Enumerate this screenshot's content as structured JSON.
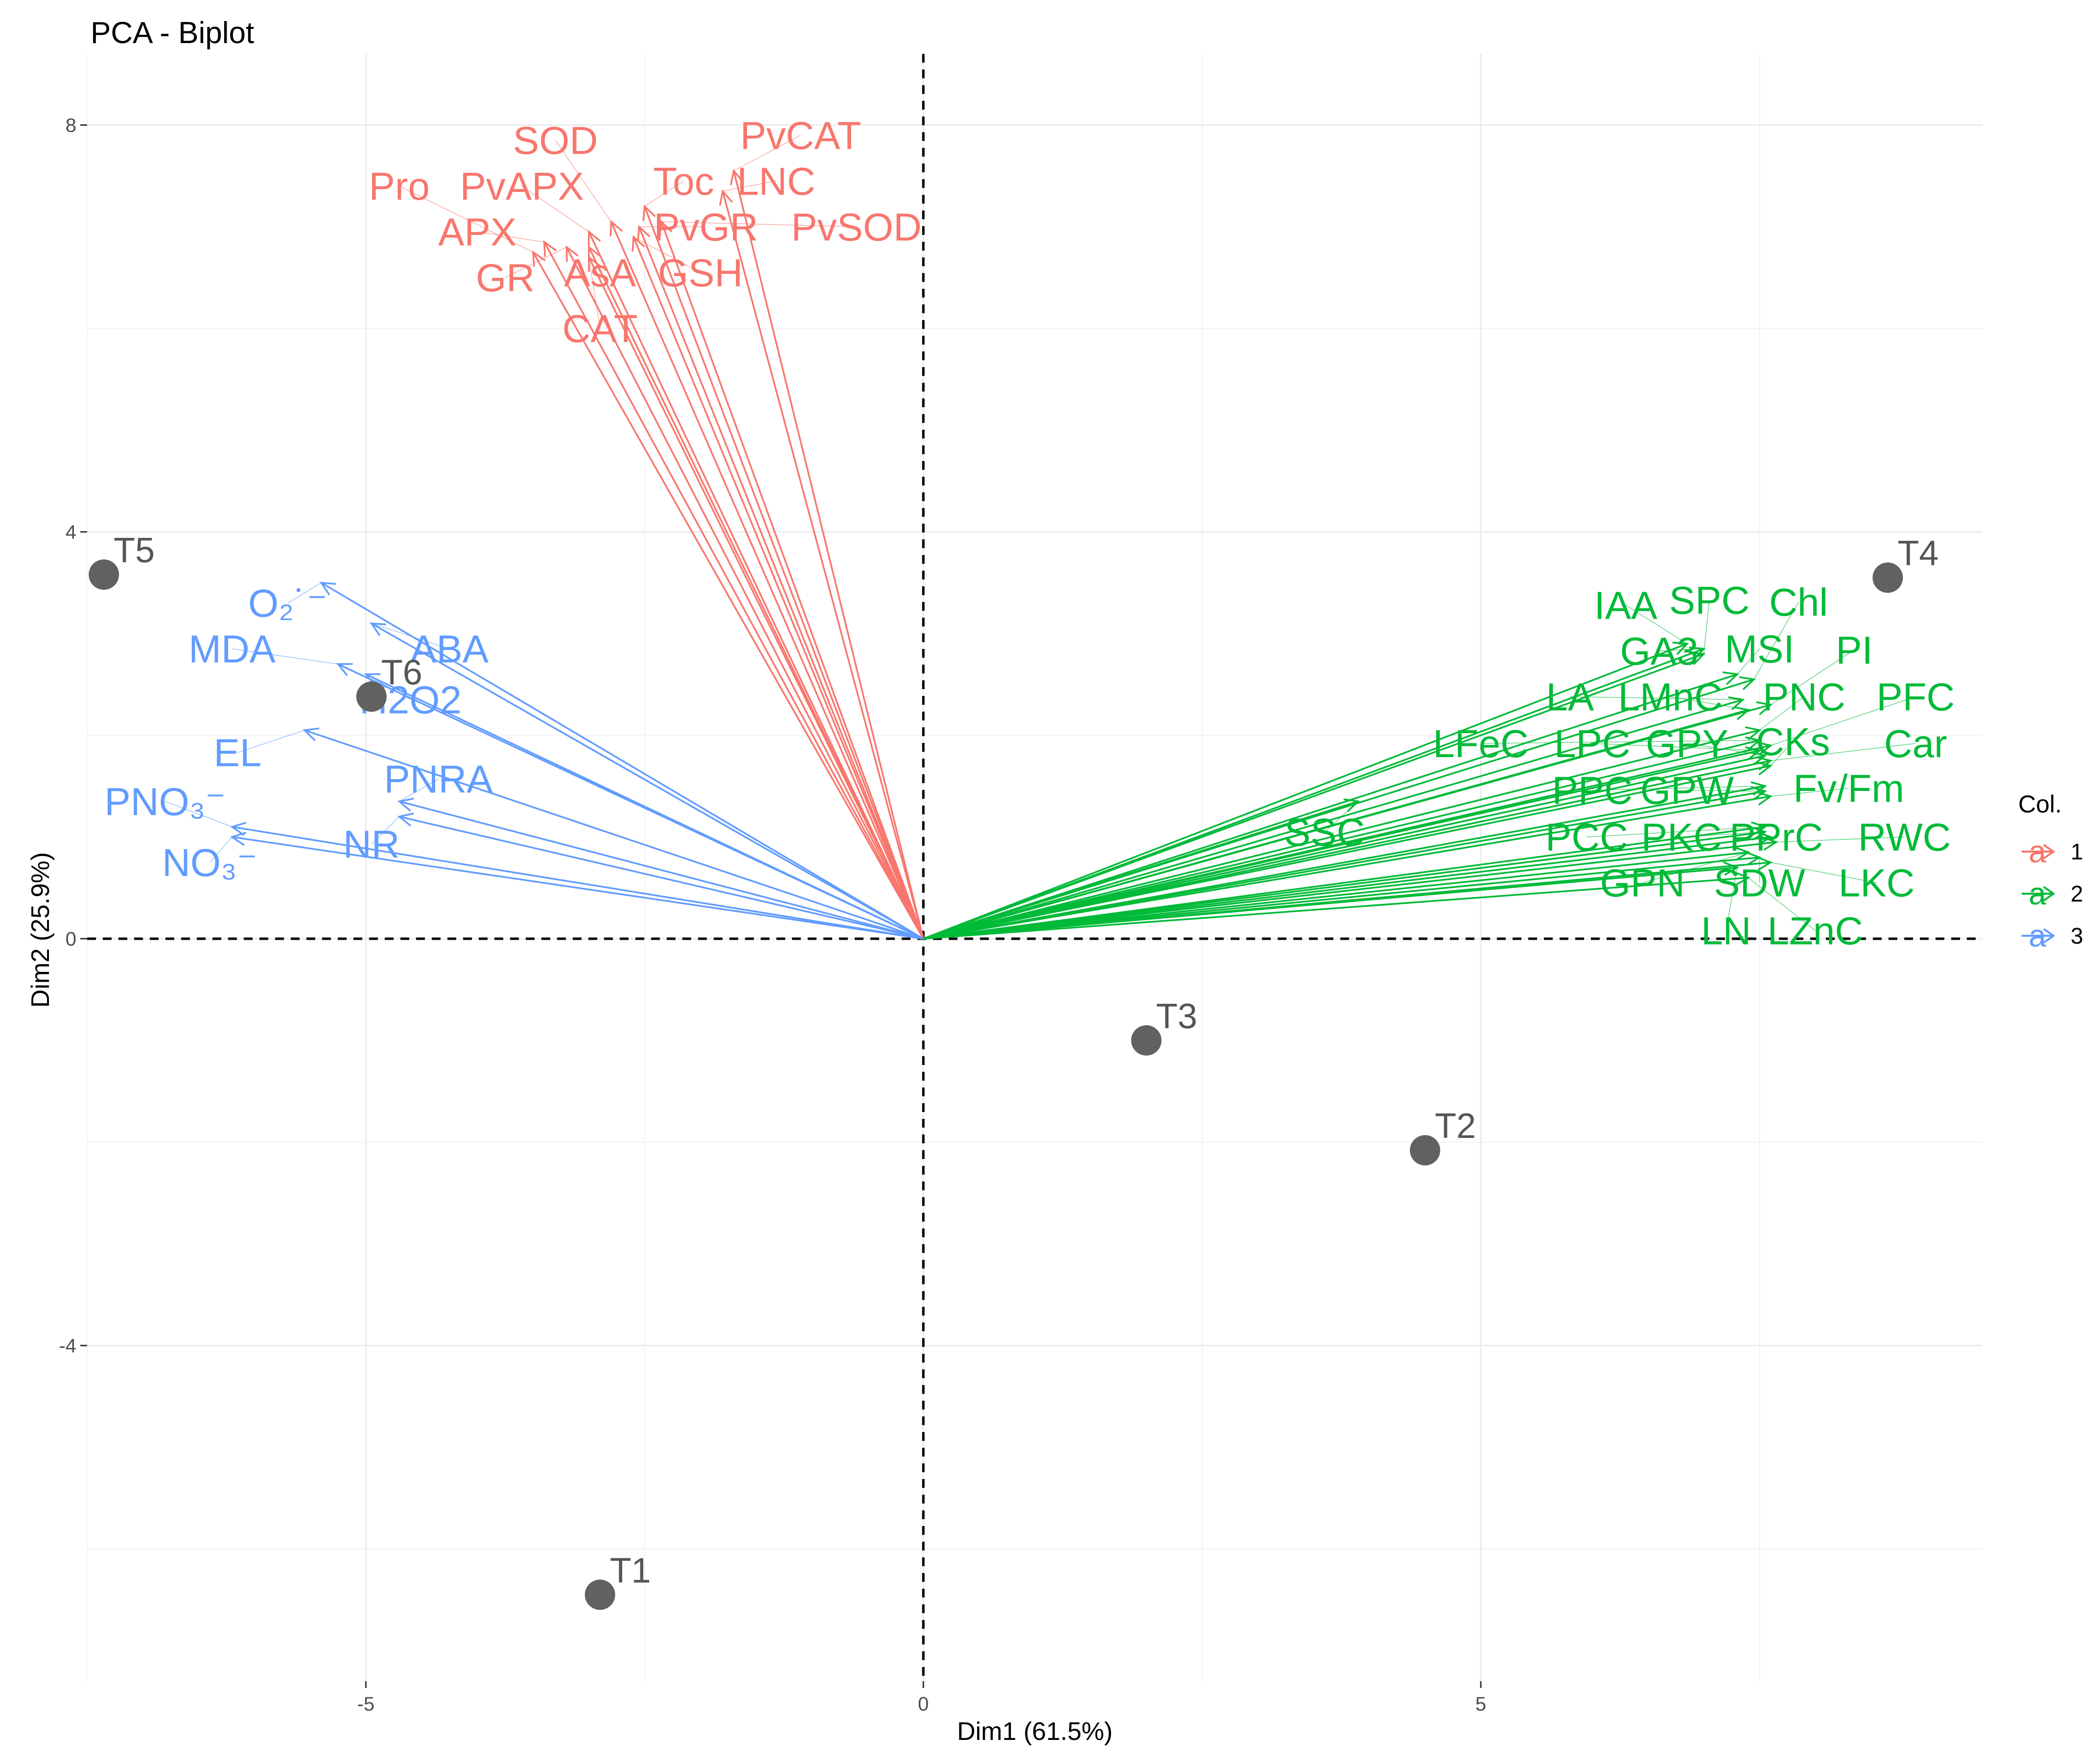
{
  "chart_data": {
    "type": "scatter",
    "subtype": "pca-biplot",
    "title": "PCA - Biplot",
    "xlabel": "Dim1 (61.5%)",
    "ylabel": "Dim2 (25.9%)",
    "xlim": [
      -7.5,
      9.5
    ],
    "ylim": [
      -7.3,
      8.7
    ],
    "xticks": [
      -5,
      0,
      5
    ],
    "yticks": [
      -4,
      0,
      4,
      8
    ],
    "grid": true,
    "legend": {
      "title": "Col.",
      "position": "right",
      "entries": [
        {
          "key": "a",
          "label": "1",
          "color": "#F8766D"
        },
        {
          "key": "a",
          "label": "2",
          "color": "#00BA38"
        },
        {
          "key": "a",
          "label": "3",
          "color": "#619CFF"
        }
      ]
    },
    "individuals": [
      {
        "name": "T1",
        "x": -2.9,
        "y": -6.45
      },
      {
        "name": "T2",
        "x": 4.5,
        "y": -2.08
      },
      {
        "name": "T3",
        "x": 2.0,
        "y": -1.0
      },
      {
        "name": "T4",
        "x": 8.65,
        "y": 3.55
      },
      {
        "name": "T5",
        "x": -7.35,
        "y": 3.58
      },
      {
        "name": "T6",
        "x": -4.95,
        "y": 2.38
      }
    ],
    "variables": [
      {
        "name": "SOD",
        "group": 1,
        "x": -2.8,
        "y": 7.05,
        "lx": -3.3,
        "ly": 7.85
      },
      {
        "name": "PvCAT",
        "group": 1,
        "x": -1.7,
        "y": 7.55,
        "lx": -1.1,
        "ly": 7.9
      },
      {
        "name": "Pro",
        "group": 1,
        "x": -3.5,
        "y": 6.75,
        "lx": -4.7,
        "ly": 7.4
      },
      {
        "name": "PvAPX",
        "group": 1,
        "x": -3.0,
        "y": 6.95,
        "lx": -3.6,
        "ly": 7.4
      },
      {
        "name": "Toc",
        "group": 1,
        "x": -2.5,
        "y": 7.2,
        "lx": -2.15,
        "ly": 7.45
      },
      {
        "name": "LNC",
        "group": 1,
        "x": -1.8,
        "y": 7.35,
        "lx": -1.32,
        "ly": 7.45
      },
      {
        "name": "APX",
        "group": 1,
        "x": -3.4,
        "y": 6.85,
        "lx": -4.0,
        "ly": 6.95
      },
      {
        "name": "PvGR",
        "group": 1,
        "x": -2.55,
        "y": 7.0,
        "lx": -1.95,
        "ly": 7.0
      },
      {
        "name": "PvSOD",
        "group": 1,
        "x": -2.35,
        "y": 7.05,
        "lx": -0.6,
        "ly": 7.0
      },
      {
        "name": "GR",
        "group": 1,
        "x": -3.2,
        "y": 6.8,
        "lx": -3.75,
        "ly": 6.5
      },
      {
        "name": "AsA",
        "group": 1,
        "x": -3.0,
        "y": 6.8,
        "lx": -2.9,
        "ly": 6.55
      },
      {
        "name": "GSH",
        "group": 1,
        "x": -2.6,
        "y": 6.9,
        "lx": -2.0,
        "ly": 6.55
      },
      {
        "name": "CAT",
        "group": 1,
        "x": -3.0,
        "y": 6.7,
        "lx": -2.9,
        "ly": 6.0
      },
      {
        "name": "O₂˙⁻",
        "group": 3,
        "x": -5.4,
        "y": 3.5,
        "lx": -5.7,
        "ly": 3.3
      },
      {
        "name": "MDA",
        "group": 3,
        "x": -5.25,
        "y": 2.7,
        "lx": -6.2,
        "ly": 2.85
      },
      {
        "name": "ABA",
        "group": 3,
        "x": -4.95,
        "y": 3.1,
        "lx": -4.25,
        "ly": 2.85
      },
      {
        "name": "H2O2",
        "group": 3,
        "x": -5.0,
        "y": 2.6,
        "lx": -4.6,
        "ly": 2.35
      },
      {
        "name": "EL",
        "group": 3,
        "x": -5.55,
        "y": 2.05,
        "lx": -6.15,
        "ly": 1.83
      },
      {
        "name": "PNRA",
        "group": 3,
        "x": -4.7,
        "y": 1.35,
        "lx": -4.35,
        "ly": 1.57
      },
      {
        "name": "PNO₃⁻",
        "group": 3,
        "x": -6.2,
        "y": 1.1,
        "lx": -6.8,
        "ly": 1.35
      },
      {
        "name": "NR",
        "group": 3,
        "x": -4.7,
        "y": 1.2,
        "lx": -4.95,
        "ly": 0.93
      },
      {
        "name": "NO₃⁻",
        "group": 3,
        "x": -6.2,
        "y": 1.0,
        "lx": -6.4,
        "ly": 0.75
      },
      {
        "name": "IAA",
        "group": 2,
        "x": 6.85,
        "y": 2.9,
        "lx": 6.3,
        "ly": 3.28
      },
      {
        "name": "SPC",
        "group": 2,
        "x": 7.0,
        "y": 2.8,
        "lx": 7.05,
        "ly": 3.33
      },
      {
        "name": "Chl",
        "group": 2,
        "x": 7.45,
        "y": 2.55,
        "lx": 7.85,
        "ly": 3.31
      },
      {
        "name": "GA3",
        "group": 2,
        "x": 7.0,
        "y": 2.85,
        "lx": 6.6,
        "ly": 2.83
      },
      {
        "name": "MSI",
        "group": 2,
        "x": 7.3,
        "y": 2.6,
        "lx": 7.5,
        "ly": 2.85
      },
      {
        "name": "PI",
        "group": 2,
        "x": 7.6,
        "y": 2.3,
        "lx": 8.35,
        "ly": 2.84
      },
      {
        "name": "LA",
        "group": 2,
        "x": 7.35,
        "y": 2.35,
        "lx": 5.8,
        "ly": 2.38
      },
      {
        "name": "LMnC",
        "group": 2,
        "x": 7.4,
        "y": 2.25,
        "lx": 6.7,
        "ly": 2.38
      },
      {
        "name": "PNC",
        "group": 2,
        "x": 7.5,
        "y": 2.05,
        "lx": 7.9,
        "ly": 2.38
      },
      {
        "name": "PFC",
        "group": 2,
        "x": 7.6,
        "y": 1.9,
        "lx": 8.9,
        "ly": 2.38
      },
      {
        "name": "LFeC",
        "group": 2,
        "x": 7.5,
        "y": 1.95,
        "lx": 5.0,
        "ly": 1.92
      },
      {
        "name": "LPC",
        "group": 2,
        "x": 7.5,
        "y": 1.85,
        "lx": 6.0,
        "ly": 1.92
      },
      {
        "name": "GPY",
        "group": 2,
        "x": 7.55,
        "y": 1.8,
        "lx": 6.85,
        "ly": 1.92
      },
      {
        "name": "CKs",
        "group": 2,
        "x": 7.6,
        "y": 1.7,
        "lx": 7.8,
        "ly": 1.94
      },
      {
        "name": "Car",
        "group": 2,
        "x": 7.6,
        "y": 1.75,
        "lx": 8.9,
        "ly": 1.92
      },
      {
        "name": "PPC",
        "group": 2,
        "x": 7.55,
        "y": 1.5,
        "lx": 6.0,
        "ly": 1.46
      },
      {
        "name": "GPW",
        "group": 2,
        "x": 7.55,
        "y": 1.45,
        "lx": 6.85,
        "ly": 1.46
      },
      {
        "name": "Fv/Fm",
        "group": 2,
        "x": 7.6,
        "y": 1.4,
        "lx": 8.3,
        "ly": 1.48
      },
      {
        "name": "SSC",
        "group": 2,
        "x": 3.9,
        "y": 1.35,
        "lx": 3.6,
        "ly": 1.05
      },
      {
        "name": "PCC",
        "group": 2,
        "x": 7.55,
        "y": 1.1,
        "lx": 5.95,
        "ly": 1.0
      },
      {
        "name": "PKC",
        "group": 2,
        "x": 7.55,
        "y": 1.05,
        "lx": 6.8,
        "ly": 1.0
      },
      {
        "name": "PPrC",
        "group": 2,
        "x": 7.6,
        "y": 1.0,
        "lx": 7.65,
        "ly": 1.0
      },
      {
        "name": "RWC",
        "group": 2,
        "x": 7.65,
        "y": 0.95,
        "lx": 8.8,
        "ly": 1.0
      },
      {
        "name": "GPN",
        "group": 2,
        "x": 7.4,
        "y": 0.85,
        "lx": 6.45,
        "ly": 0.55
      },
      {
        "name": "SDW",
        "group": 2,
        "x": 7.5,
        "y": 0.8,
        "lx": 7.5,
        "ly": 0.55
      },
      {
        "name": "LKC",
        "group": 2,
        "x": 7.6,
        "y": 0.75,
        "lx": 8.55,
        "ly": 0.55
      },
      {
        "name": "LN",
        "group": 2,
        "x": 7.3,
        "y": 0.7,
        "lx": 7.2,
        "ly": 0.08
      },
      {
        "name": "LZnC",
        "group": 2,
        "x": 7.4,
        "y": 0.6,
        "lx": 8.0,
        "ly": 0.08
      }
    ]
  }
}
